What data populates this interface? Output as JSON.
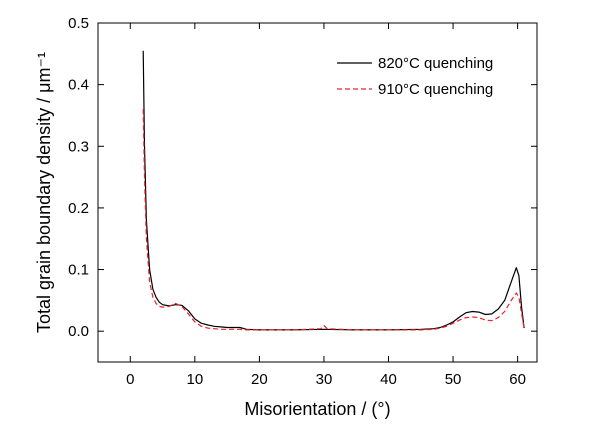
{
  "chart_data": {
    "type": "line",
    "xlabel": "Misorientation / (°)",
    "ylabel": "Total grain boundary density / μm⁻¹",
    "xlim": [
      -5,
      63
    ],
    "ylim": [
      -0.05,
      0.5
    ],
    "xticks": [
      0,
      10,
      20,
      30,
      40,
      50,
      60
    ],
    "yticks": [
      0.0,
      0.1,
      0.2,
      0.3,
      0.4,
      0.5
    ],
    "xtick_labels": [
      "0",
      "10",
      "20",
      "30",
      "40",
      "50",
      "60"
    ],
    "ytick_labels": [
      "0.0",
      "0.1",
      "0.2",
      "0.3",
      "0.4",
      "0.5"
    ],
    "grid": false,
    "legend_position": "top-right",
    "series": [
      {
        "name": "820°C quenching",
        "color": "#000000",
        "style": "solid",
        "points": [
          [
            2,
            0.455
          ],
          [
            2.2,
            0.3
          ],
          [
            2.5,
            0.18
          ],
          [
            3,
            0.1
          ],
          [
            3.5,
            0.068
          ],
          [
            4,
            0.055
          ],
          [
            4.5,
            0.047
          ],
          [
            5,
            0.043
          ],
          [
            6,
            0.041
          ],
          [
            7,
            0.043
          ],
          [
            8,
            0.042
          ],
          [
            9,
            0.033
          ],
          [
            10,
            0.02
          ],
          [
            11,
            0.013
          ],
          [
            12,
            0.01
          ],
          [
            13,
            0.008
          ],
          [
            14,
            0.007
          ],
          [
            15,
            0.006
          ],
          [
            16,
            0.006
          ],
          [
            17,
            0.006
          ],
          [
            18,
            0.003
          ],
          [
            20,
            0.002
          ],
          [
            25,
            0.002
          ],
          [
            30,
            0.003
          ],
          [
            35,
            0.002
          ],
          [
            40,
            0.002
          ],
          [
            45,
            0.003
          ],
          [
            47,
            0.004
          ],
          [
            48,
            0.006
          ],
          [
            49,
            0.01
          ],
          [
            50,
            0.015
          ],
          [
            51,
            0.023
          ],
          [
            52,
            0.03
          ],
          [
            53,
            0.032
          ],
          [
            54,
            0.031
          ],
          [
            55,
            0.027
          ],
          [
            56,
            0.028
          ],
          [
            57,
            0.036
          ],
          [
            58,
            0.05
          ],
          [
            59,
            0.08
          ],
          [
            59.8,
            0.103
          ],
          [
            60.2,
            0.09
          ],
          [
            60.6,
            0.04
          ],
          [
            61,
            0.005
          ]
        ]
      },
      {
        "name": "910°C quenching",
        "color": "#e8202a",
        "style": "dashed",
        "points": [
          [
            2,
            0.36
          ],
          [
            2.2,
            0.25
          ],
          [
            2.5,
            0.15
          ],
          [
            3,
            0.08
          ],
          [
            3.5,
            0.055
          ],
          [
            4,
            0.045
          ],
          [
            4.5,
            0.04
          ],
          [
            5,
            0.039
          ],
          [
            6,
            0.04
          ],
          [
            7,
            0.045
          ],
          [
            8,
            0.04
          ],
          [
            9,
            0.028
          ],
          [
            10,
            0.015
          ],
          [
            11,
            0.008
          ],
          [
            12,
            0.005
          ],
          [
            13,
            0.004
          ],
          [
            14,
            0.003
          ],
          [
            15,
            0.003
          ],
          [
            16,
            0.003
          ],
          [
            17,
            0.003
          ],
          [
            18,
            0.002
          ],
          [
            20,
            0.002
          ],
          [
            25,
            0.002
          ],
          [
            29.5,
            0.004
          ],
          [
            30,
            0.009
          ],
          [
            30.5,
            0.004
          ],
          [
            35,
            0.002
          ],
          [
            40,
            0.002
          ],
          [
            45,
            0.002
          ],
          [
            47,
            0.003
          ],
          [
            48,
            0.005
          ],
          [
            49,
            0.008
          ],
          [
            50,
            0.013
          ],
          [
            51,
            0.018
          ],
          [
            52,
            0.022
          ],
          [
            53,
            0.023
          ],
          [
            54,
            0.022
          ],
          [
            55,
            0.018
          ],
          [
            56,
            0.017
          ],
          [
            57,
            0.022
          ],
          [
            58,
            0.032
          ],
          [
            59,
            0.05
          ],
          [
            59.8,
            0.062
          ],
          [
            60.2,
            0.055
          ],
          [
            60.6,
            0.03
          ],
          [
            61,
            0.005
          ]
        ]
      }
    ]
  }
}
